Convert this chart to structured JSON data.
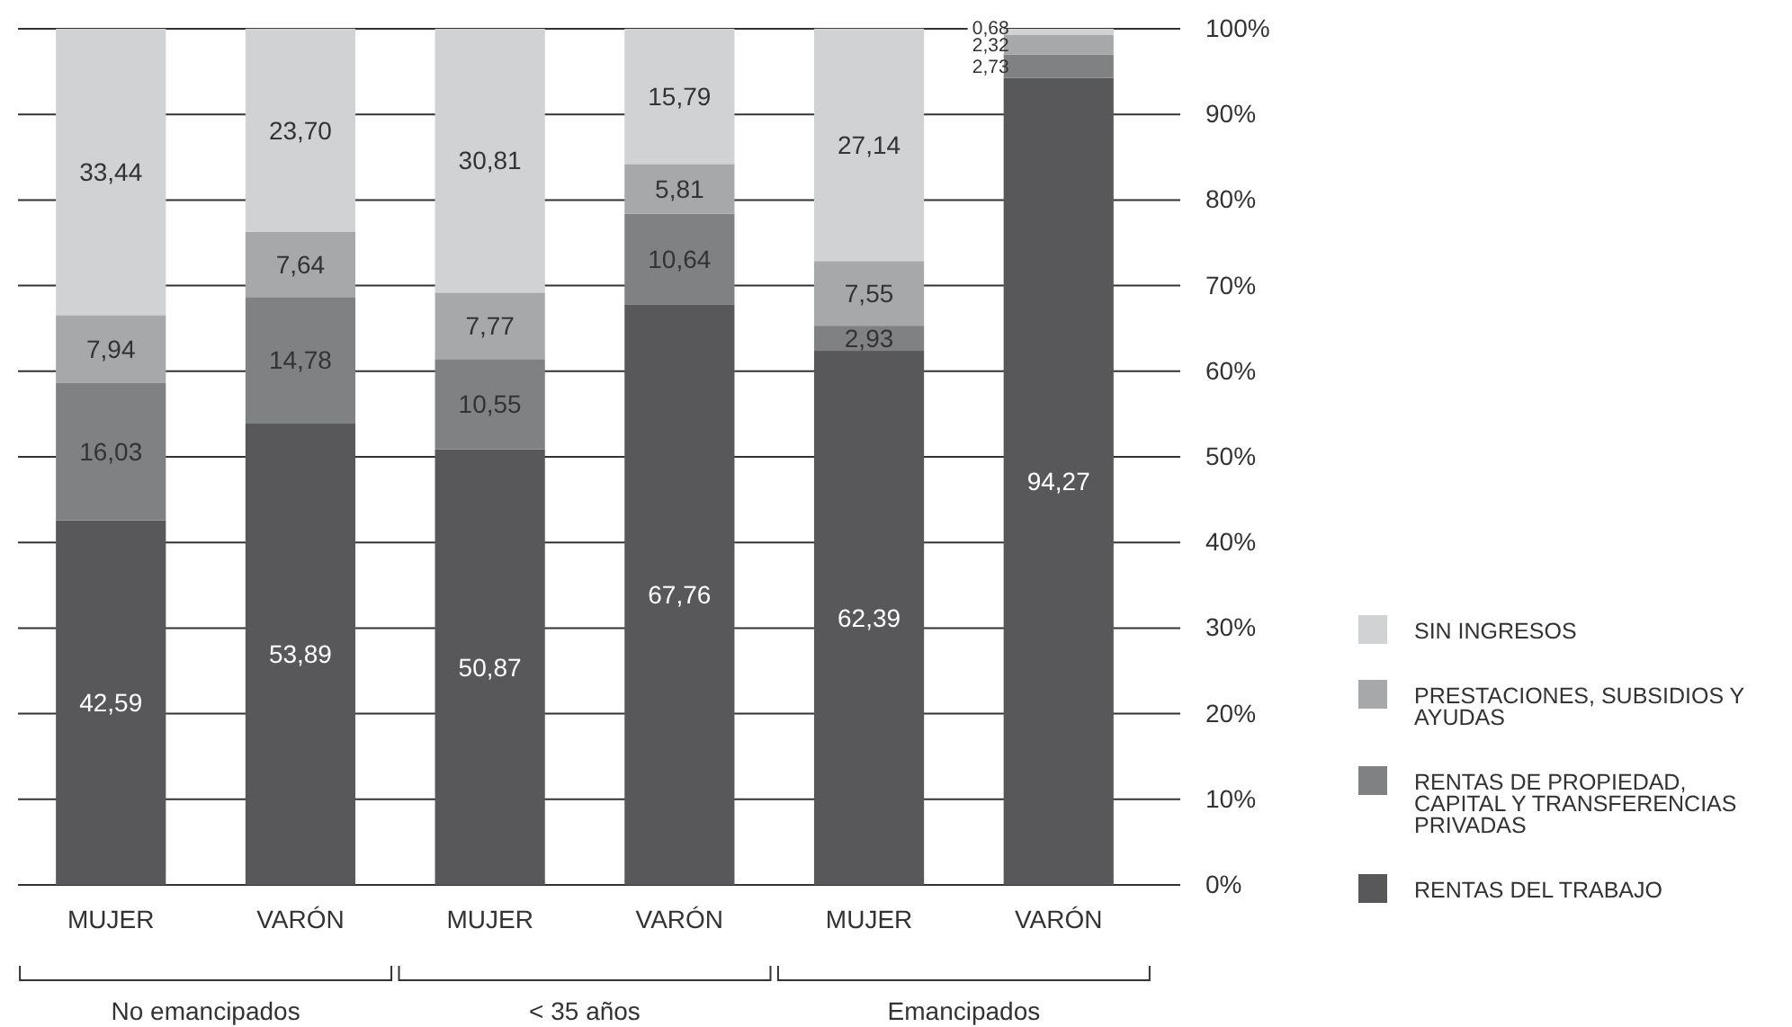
{
  "chart_data": {
    "type": "bar",
    "stacked": true,
    "categories": [
      "MUJER",
      "VARÓN",
      "MUJER",
      "VARÓN",
      "MUJER",
      "VARÓN"
    ],
    "series": [
      {
        "name": "RENTAS DEL TRABAJO",
        "color": "#58585a",
        "values": [
          42.59,
          53.89,
          50.87,
          67.76,
          62.39,
          94.27
        ],
        "value_labels": [
          "42,59",
          "53,89",
          "50,87",
          "67,76",
          "62,39",
          "94,27"
        ]
      },
      {
        "name": "RENTAS DE PROPIEDAD, CAPITAL Y TRANSFERENCIAS PRIVADAS",
        "color": "#808183",
        "values": [
          16.03,
          14.78,
          10.55,
          10.64,
          2.93,
          2.73
        ],
        "value_labels": [
          "16,03",
          "14,78",
          "10,55",
          "10,64",
          "2,93",
          "2,73"
        ]
      },
      {
        "name": "PRESTACIONES, SUBSIDIOS Y AYUDAS",
        "color": "#a7a8aa",
        "values": [
          7.94,
          7.64,
          7.77,
          5.81,
          7.55,
          2.32
        ],
        "value_labels": [
          "7,94",
          "7,64",
          "7,77",
          "5,81",
          "7,55",
          "2,32"
        ]
      },
      {
        "name": "SIN INGRESOS",
        "color": "#d1d2d4",
        "values": [
          33.44,
          23.7,
          30.81,
          15.79,
          27.14,
          0.68
        ],
        "value_labels": [
          "33,44",
          "23,70",
          "30,81",
          "15,79",
          "27,14",
          "0,68"
        ]
      }
    ],
    "ylim": [
      0,
      100
    ],
    "yticks": [
      {
        "value": 0,
        "label": "0%"
      },
      {
        "value": 10,
        "label": "10%"
      },
      {
        "value": 20,
        "label": "20%"
      },
      {
        "value": 30,
        "label": "30%"
      },
      {
        "value": 40,
        "label": "40%"
      },
      {
        "value": 50,
        "label": "50%"
      },
      {
        "value": 60,
        "label": "60%"
      },
      {
        "value": 70,
        "label": "70%"
      },
      {
        "value": 80,
        "label": "80%"
      },
      {
        "value": 90,
        "label": "90%"
      },
      {
        "value": 100,
        "label": "100%"
      }
    ],
    "grid": "y",
    "legend": "right",
    "annotations": [
      "No emancipados",
      "< 35 años",
      "Emancipados"
    ]
  }
}
